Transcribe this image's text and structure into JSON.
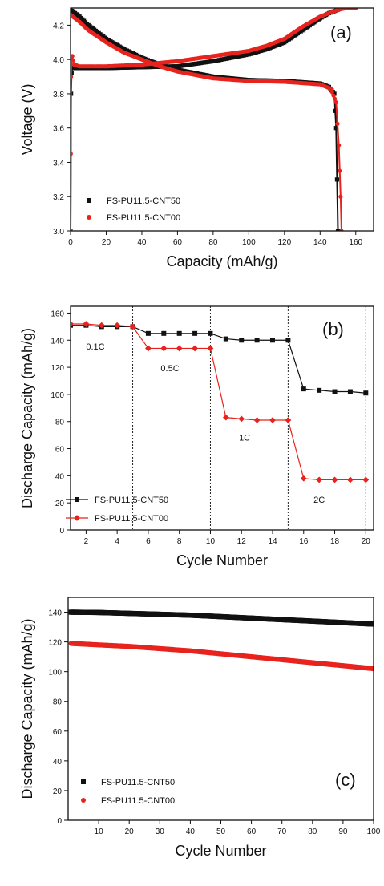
{
  "colors": {
    "series_black": "#111111",
    "series_red": "#e8231d"
  },
  "chart_data": [
    {
      "type": "line",
      "panel": "(a)",
      "xlabel": "Capacity (mAh/g)",
      "ylabel": "Voltage (V)",
      "xlim": [
        0,
        170
      ],
      "ylim": [
        3.0,
        4.3
      ],
      "xticks": [
        0,
        20,
        40,
        60,
        80,
        100,
        120,
        140,
        160
      ],
      "yticks": [
        3.0,
        3.2,
        3.4,
        3.6,
        3.8,
        4.0,
        4.2
      ],
      "grid": false,
      "legend_position": "bottom-left",
      "series": [
        {
          "name": "FS-PU11.5-CNT50",
          "color": "#111111",
          "marker": "square",
          "curves": [
            {
              "x": [
                0,
                0.3,
                0.6,
                1,
                5,
                20,
                40,
                60,
                80,
                100,
                110,
                120,
                130,
                140,
                145,
                150,
                152,
                155
              ],
              "y": [
                3.0,
                3.8,
                3.92,
                3.95,
                3.95,
                3.95,
                3.955,
                3.96,
                3.99,
                4.03,
                4.06,
                4.1,
                4.17,
                4.24,
                4.27,
                4.29,
                4.3,
                4.3
              ]
            },
            {
              "x": [
                0,
                5,
                10,
                20,
                30,
                40,
                50,
                60,
                70,
                80,
                100,
                120,
                140,
                145,
                148,
                149,
                149.5,
                150
              ],
              "y": [
                4.29,
                4.25,
                4.2,
                4.12,
                4.06,
                4.01,
                3.97,
                3.94,
                3.92,
                3.9,
                3.88,
                3.875,
                3.86,
                3.84,
                3.8,
                3.6,
                3.3,
                3.0
              ]
            }
          ]
        },
        {
          "name": "FS-PU11.5-CNT00",
          "color": "#e8231d",
          "marker": "circle",
          "curves": [
            {
              "x": [
                0,
                0.3,
                0.6,
                1,
                2,
                5,
                20,
                40,
                60,
                80,
                100,
                110,
                120,
                130,
                140,
                150,
                155,
                160
              ],
              "y": [
                3.0,
                3.9,
                4.0,
                4.02,
                3.97,
                3.96,
                3.96,
                3.97,
                3.99,
                4.02,
                4.05,
                4.08,
                4.12,
                4.19,
                4.25,
                4.29,
                4.3,
                4.3
              ]
            },
            {
              "x": [
                0,
                5,
                10,
                20,
                30,
                40,
                50,
                60,
                70,
                80,
                100,
                120,
                140,
                146,
                149,
                150.5,
                151.5,
                152
              ],
              "y": [
                4.26,
                4.22,
                4.17,
                4.1,
                4.04,
                4.0,
                3.96,
                3.93,
                3.91,
                3.89,
                3.875,
                3.87,
                3.855,
                3.83,
                3.75,
                3.5,
                3.2,
                3.0
              ]
            }
          ]
        }
      ]
    },
    {
      "type": "line",
      "panel": "(b)",
      "xlabel": "Cycle Number",
      "ylabel": "Discharge Capacity (mAh/g)",
      "xlim": [
        1,
        20.5
      ],
      "ylim": [
        0,
        165
      ],
      "xticks": [
        2,
        4,
        6,
        8,
        10,
        12,
        14,
        16,
        18,
        20
      ],
      "yticks": [
        0,
        20,
        40,
        60,
        80,
        100,
        120,
        140,
        160
      ],
      "grid": false,
      "legend_position": "bottom-left",
      "vlines": [
        5,
        10,
        15,
        20
      ],
      "annotations": [
        {
          "text": "0.1C",
          "x": 2.6,
          "y": 133
        },
        {
          "text": "0.5C",
          "x": 7.4,
          "y": 117
        },
        {
          "text": "1C",
          "x": 12.2,
          "y": 66
        },
        {
          "text": "2C",
          "x": 17.0,
          "y": 20
        }
      ],
      "x": [
        1,
        2,
        3,
        4,
        5,
        6,
        7,
        8,
        9,
        10,
        11,
        12,
        13,
        14,
        15,
        16,
        17,
        18,
        19,
        20
      ],
      "series": [
        {
          "name": "FS-PU11.5-CNT50",
          "color": "#111111",
          "marker": "square",
          "values": [
            151,
            151,
            150,
            150,
            150,
            145,
            145,
            145,
            145,
            145,
            141,
            140,
            140,
            140,
            140,
            104,
            103,
            102,
            102,
            101
          ]
        },
        {
          "name": "FS-PU11.5-CNT00",
          "color": "#e8231d",
          "marker": "diamond",
          "values": [
            152,
            152,
            151,
            151,
            150,
            134,
            134,
            134,
            134,
            134,
            83,
            82,
            81,
            81,
            81,
            38,
            37,
            37,
            37,
            37
          ]
        }
      ]
    },
    {
      "type": "scatter",
      "panel": "(c)",
      "xlabel": "Cycle Number",
      "ylabel": "Discharge Capacity (mAh/g)",
      "xlim": [
        0,
        100
      ],
      "ylim": [
        0,
        150
      ],
      "xticks": [
        10,
        20,
        30,
        40,
        50,
        60,
        70,
        80,
        90,
        100
      ],
      "yticks": [
        0,
        20,
        40,
        60,
        80,
        100,
        120,
        140
      ],
      "grid": false,
      "legend_position": "bottom-left",
      "series": [
        {
          "name": "FS-PU11.5-CNT50",
          "color": "#111111",
          "marker": "square",
          "x": [
            1,
            10,
            20,
            30,
            40,
            50,
            60,
            70,
            80,
            90,
            100
          ],
          "values": [
            140,
            139.8,
            139.2,
            138.6,
            138,
            137,
            136,
            135,
            134,
            133,
            132
          ]
        },
        {
          "name": "FS-PU11.5-CNT00",
          "color": "#e8231d",
          "marker": "circle",
          "x": [
            1,
            10,
            20,
            30,
            40,
            50,
            60,
            70,
            80,
            90,
            100
          ],
          "values": [
            119,
            118,
            117,
            115.5,
            114,
            112,
            110,
            108,
            106,
            104,
            102
          ]
        }
      ]
    }
  ]
}
